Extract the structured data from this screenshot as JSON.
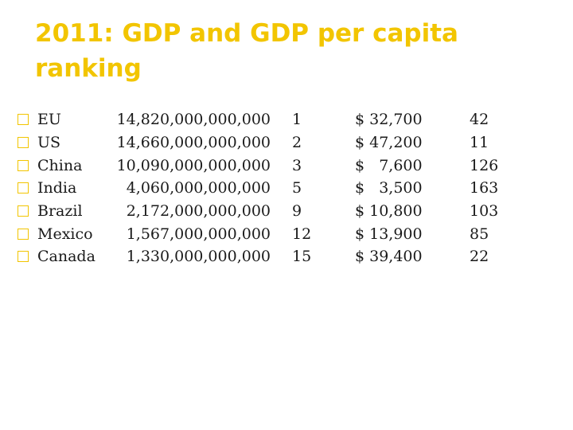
{
  "title": "2011: GDP and GDP per capita ranking",
  "accent_color": "#f2c500",
  "rows": [
    {
      "country": "EU",
      "gdp": "14,820,000,000,000",
      "gdp_rank": "1",
      "per_capita": "$ 32,700",
      "per_capita_rank": "42"
    },
    {
      "country": "US",
      "gdp": "14,660,000,000,000",
      "gdp_rank": "2",
      "per_capita": "$ 47,200",
      "per_capita_rank": "11"
    },
    {
      "country": "China",
      "gdp": "10,090,000,000,000",
      "gdp_rank": "3",
      "per_capita": "$   7,600",
      "per_capita_rank": "126"
    },
    {
      "country": "India",
      "gdp": "4,060,000,000,000",
      "gdp_rank": "5",
      "per_capita": "$   3,500",
      "per_capita_rank": "163"
    },
    {
      "country": "Brazil",
      "gdp": "2,172,000,000,000",
      "gdp_rank": "9",
      "per_capita": "$ 10,800",
      "per_capita_rank": "103"
    },
    {
      "country": "Mexico",
      "gdp": "1,567,000,000,000",
      "gdp_rank": "12",
      "per_capita": "$ 13,900",
      "per_capita_rank": "85"
    },
    {
      "country": "Canada",
      "gdp": "1,330,000,000,000",
      "gdp_rank": "15",
      "per_capita": "$ 39,400",
      "per_capita_rank": "22"
    }
  ]
}
